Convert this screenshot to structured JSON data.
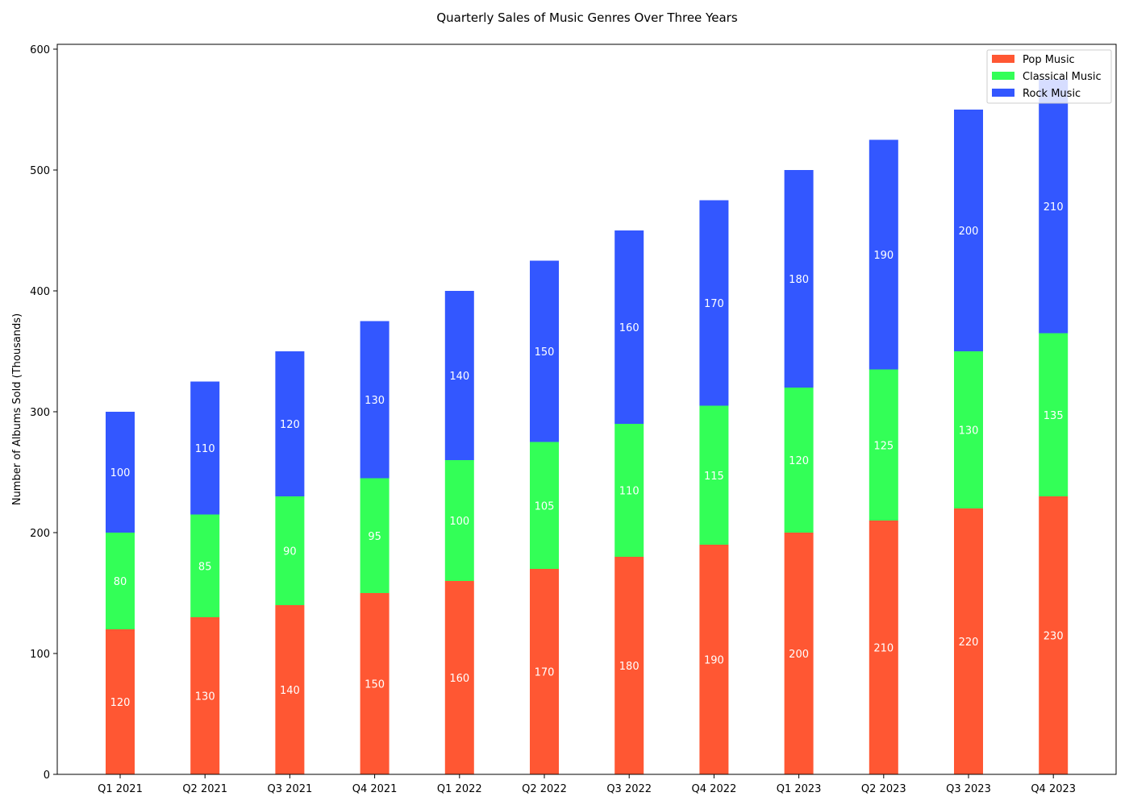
{
  "chart_data": {
    "type": "bar",
    "stacked": true,
    "title": "Quarterly Sales of Music Genres Over Three Years",
    "xlabel": "",
    "ylabel": "Number of Albums Sold (Thousands)",
    "ylim": [
      0,
      600
    ],
    "yticks": [
      0,
      100,
      200,
      300,
      400,
      500,
      600
    ],
    "grid": false,
    "legend_position": "top-right",
    "categories": [
      "Q1 2021",
      "Q2 2021",
      "Q3 2021",
      "Q4 2021",
      "Q1 2022",
      "Q2 2022",
      "Q3 2022",
      "Q4 2022",
      "Q1 2023",
      "Q2 2023",
      "Q3 2023",
      "Q4 2023"
    ],
    "series": [
      {
        "name": "Pop Music",
        "color": "#ff5733",
        "values": [
          120,
          130,
          140,
          150,
          160,
          170,
          180,
          190,
          200,
          210,
          220,
          230
        ]
      },
      {
        "name": "Classical Music",
        "color": "#33ff57",
        "values": [
          80,
          85,
          90,
          95,
          100,
          105,
          110,
          115,
          120,
          125,
          130,
          135
        ]
      },
      {
        "name": "Rock Music",
        "color": "#3357ff",
        "values": [
          100,
          110,
          120,
          130,
          140,
          150,
          160,
          170,
          180,
          190,
          200,
          210
        ]
      }
    ]
  }
}
